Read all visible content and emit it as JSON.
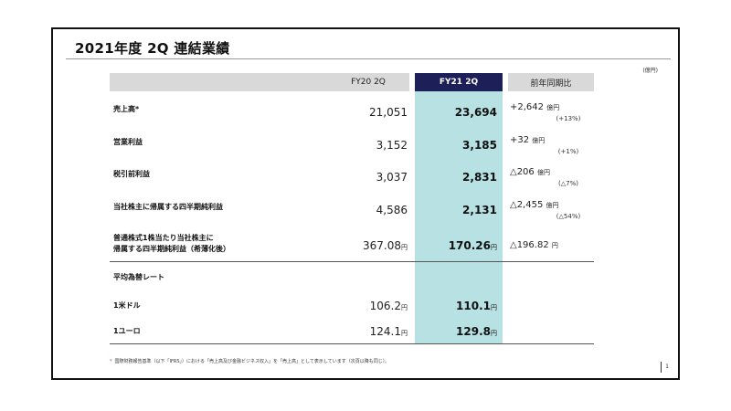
{
  "title": "2021年度 2Q 連結業績",
  "unit_label": "(億円)",
  "headers": {
    "fy20": "FY20 2Q",
    "fy21": "FY21 2Q",
    "yoy": "前年同期比"
  },
  "rows": [
    {
      "label": "売上高*",
      "fy20": "21,051",
      "fy21": "23,694",
      "change": "+2,642",
      "change_unit": "億円",
      "pct": "(+13%)"
    },
    {
      "label": "営業利益",
      "fy20": "3,152",
      "fy21": "3,185",
      "change": "+32",
      "change_unit": "億円",
      "pct": "(+1%)"
    },
    {
      "label": "税引前利益",
      "fy20": "3,037",
      "fy21": "2,831",
      "change": "△206",
      "change_unit": "億円",
      "pct": "(△7%)"
    },
    {
      "label": "当社株主に帰属する四半期純利益",
      "fy20": "4,586",
      "fy21": "2,131",
      "change": "△2,455",
      "change_unit": "億円",
      "pct": "(△54%)"
    },
    {
      "label_line1": "普通株式1株当たり当社株主に",
      "label_line2": "帰属する四半期純利益（希薄化後）",
      "fy20": "367.08",
      "fy20_unit": "円",
      "fy21": "170.26",
      "fy21_unit": "円",
      "change": "△196.82",
      "change_unit": "円"
    }
  ],
  "fx": {
    "section_label": "平均為替レート",
    "rows": [
      {
        "label": "1米ドル",
        "fy20": "106.2",
        "fy20_unit": "円",
        "fy21": "110.1",
        "fy21_unit": "円"
      },
      {
        "label": "1ユーロ",
        "fy20": "124.1",
        "fy20_unit": "円",
        "fy21": "129.8",
        "fy21_unit": "円"
      }
    ]
  },
  "footnote": "国際財務報告基準（以下「IFRS」）における「売上高及び金融ビジネス収入」を「売上高」として表示しています（次頁以降も同じ）。",
  "footnote_mark": "*",
  "page_number": "1"
}
